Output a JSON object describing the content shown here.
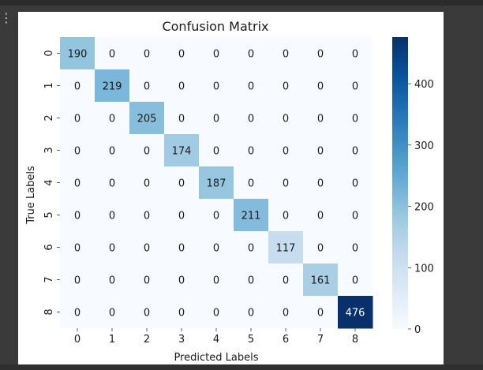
{
  "window": {
    "side_glyph": "⋮"
  },
  "chart_data": {
    "type": "heatmap",
    "title": "Confusion Matrix",
    "xlabel": "Predicted Labels",
    "ylabel": "True Labels",
    "x_categories": [
      "0",
      "1",
      "2",
      "3",
      "4",
      "5",
      "6",
      "7",
      "8"
    ],
    "y_categories": [
      "0",
      "1",
      "2",
      "3",
      "4",
      "5",
      "6",
      "7",
      "8"
    ],
    "values": [
      [
        190,
        0,
        0,
        0,
        0,
        0,
        0,
        0,
        0
      ],
      [
        0,
        219,
        0,
        0,
        0,
        0,
        0,
        0,
        0
      ],
      [
        0,
        0,
        205,
        0,
        0,
        0,
        0,
        0,
        0
      ],
      [
        0,
        0,
        0,
        174,
        0,
        0,
        0,
        0,
        0
      ],
      [
        0,
        0,
        0,
        0,
        187,
        0,
        0,
        0,
        0
      ],
      [
        0,
        0,
        0,
        0,
        0,
        211,
        0,
        0,
        0
      ],
      [
        0,
        0,
        0,
        0,
        0,
        0,
        117,
        0,
        0
      ],
      [
        0,
        0,
        0,
        0,
        0,
        0,
        0,
        161,
        0
      ],
      [
        0,
        0,
        0,
        0,
        0,
        0,
        0,
        0,
        476
      ]
    ],
    "colorbar": {
      "min": 0,
      "max": 476,
      "ticks": [
        0,
        100,
        200,
        300,
        400
      ],
      "colormap": "Blues"
    },
    "colors": {
      "low": "#f7fbff",
      "high": "#08306b"
    }
  }
}
